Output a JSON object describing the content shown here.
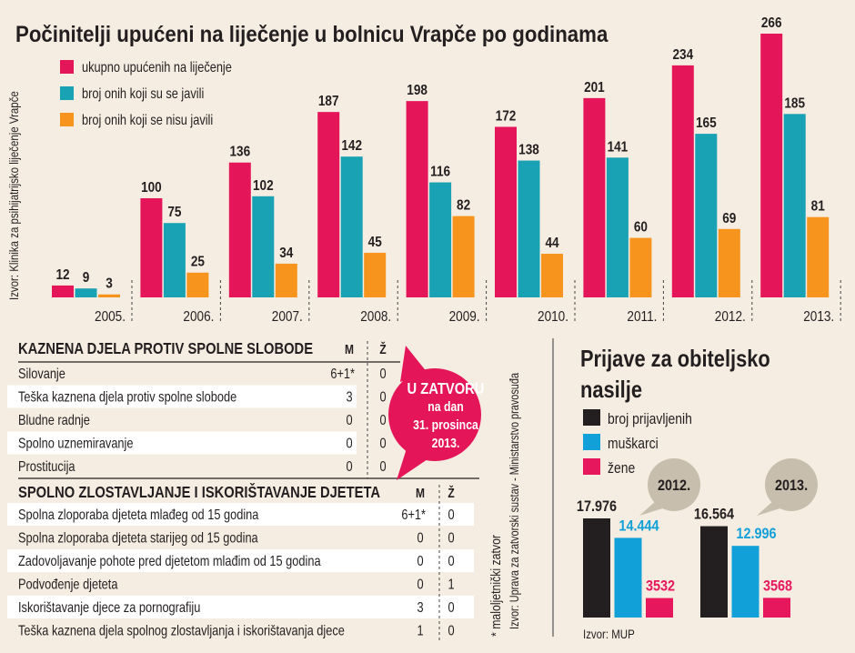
{
  "colors": {
    "background": "#f5ede2",
    "pink": "#e5155a",
    "teal": "#19a2b4",
    "orange": "#f7941d",
    "black": "#231f20",
    "blue": "#12a0d8",
    "bubble_gray": "#c8bead"
  },
  "chart_data": [
    {
      "type": "bar",
      "title": "Počinitelji upućeni na liječenje u bolnicu Vrapče po godinama",
      "source": "Izvor: Klinika za psihijatrijsko liječenje Vrapče",
      "categories": [
        "2005.",
        "2006.",
        "2007.",
        "2008.",
        "2009.",
        "2010.",
        "2011.",
        "2012.",
        "2013."
      ],
      "ylim": [
        0,
        266
      ],
      "legend": "top-left",
      "series": [
        {
          "name": "ukupno upućenih na liječenje",
          "color": "#e5155a",
          "values": [
            12,
            100,
            136,
            187,
            198,
            172,
            201,
            234,
            266
          ]
        },
        {
          "name": "broj onih koji su se javili",
          "color": "#19a2b4",
          "values": [
            9,
            75,
            102,
            142,
            116,
            138,
            141,
            165,
            185
          ]
        },
        {
          "name": "broj onih koji se nisu javili",
          "color": "#f7941d",
          "values": [
            3,
            25,
            34,
            45,
            82,
            44,
            60,
            69,
            81
          ]
        }
      ]
    },
    {
      "type": "bar",
      "title_lines": [
        "Prijave za obiteljsko",
        "nasilje"
      ],
      "source": "Izvor: MUP",
      "categories": [
        "2012.",
        "2013."
      ],
      "ylim": [
        0,
        17976
      ],
      "legend": "top-left",
      "series": [
        {
          "name": "broj prijavljenih",
          "color": "#231f20",
          "values": [
            17976,
            16564
          ],
          "labels": [
            "17.976",
            "16.564"
          ]
        },
        {
          "name": "muškarci",
          "color": "#12a0d8",
          "values": [
            14444,
            12996
          ],
          "labels": [
            "14.444",
            "12.996"
          ]
        },
        {
          "name": "žene",
          "color": "#e6175c",
          "values": [
            3532,
            3568
          ],
          "labels": [
            "3532",
            "3568"
          ]
        }
      ]
    }
  ],
  "tables": [
    {
      "title": "KAZNENA DJELA PROTIV SPOLNE SLOBODE",
      "col_m": "M",
      "col_z": "Ž",
      "rows": [
        {
          "label": "Silovanje",
          "m": "6+1*",
          "z": "0"
        },
        {
          "label": "Teška kaznena djela protiv spolne slobode",
          "m": "3",
          "z": "0"
        },
        {
          "label": "Bludne radnje",
          "m": "0",
          "z": "0"
        },
        {
          "label": "Spolno uznemiravanje",
          "m": "0",
          "z": "0"
        },
        {
          "label": "Prostitucija",
          "m": "0",
          "z": "0"
        }
      ]
    },
    {
      "title": "SPOLNO ZLOSTAVLJANJE I ISKORIŠTAVANJE DJETETA",
      "col_m": "M",
      "col_z": "Ž",
      "rows": [
        {
          "label": "Spolna zloporaba djeteta mlađeg od 15 godina",
          "m": "6+1*",
          "z": "0"
        },
        {
          "label": "Spolna zloporaba djeteta starijeg od 15 godina",
          "m": "0",
          "z": "0"
        },
        {
          "label": "Zadovoljavanje pohote pred djetetom mlađim od 15 godina",
          "m": "0",
          "z": "0"
        },
        {
          "label": "Podvođenje djeteta",
          "m": "0",
          "z": "1"
        },
        {
          "label": "Iskorištavanje djece za pornografiju",
          "m": "3",
          "z": "0"
        },
        {
          "label": "Teška kaznena djela spolnog zlostavljanja i iskorištavanja djece",
          "m": "1",
          "z": "0"
        }
      ]
    }
  ],
  "callout": {
    "lines": [
      "U ZATVORU",
      "na dan",
      "31. prosinca",
      "2013."
    ]
  },
  "footnote": "* maloljetnički zatvor",
  "tables_source": "Izvor: Uprava za zatvorski sustav - Ministarstvo pravosuđa"
}
